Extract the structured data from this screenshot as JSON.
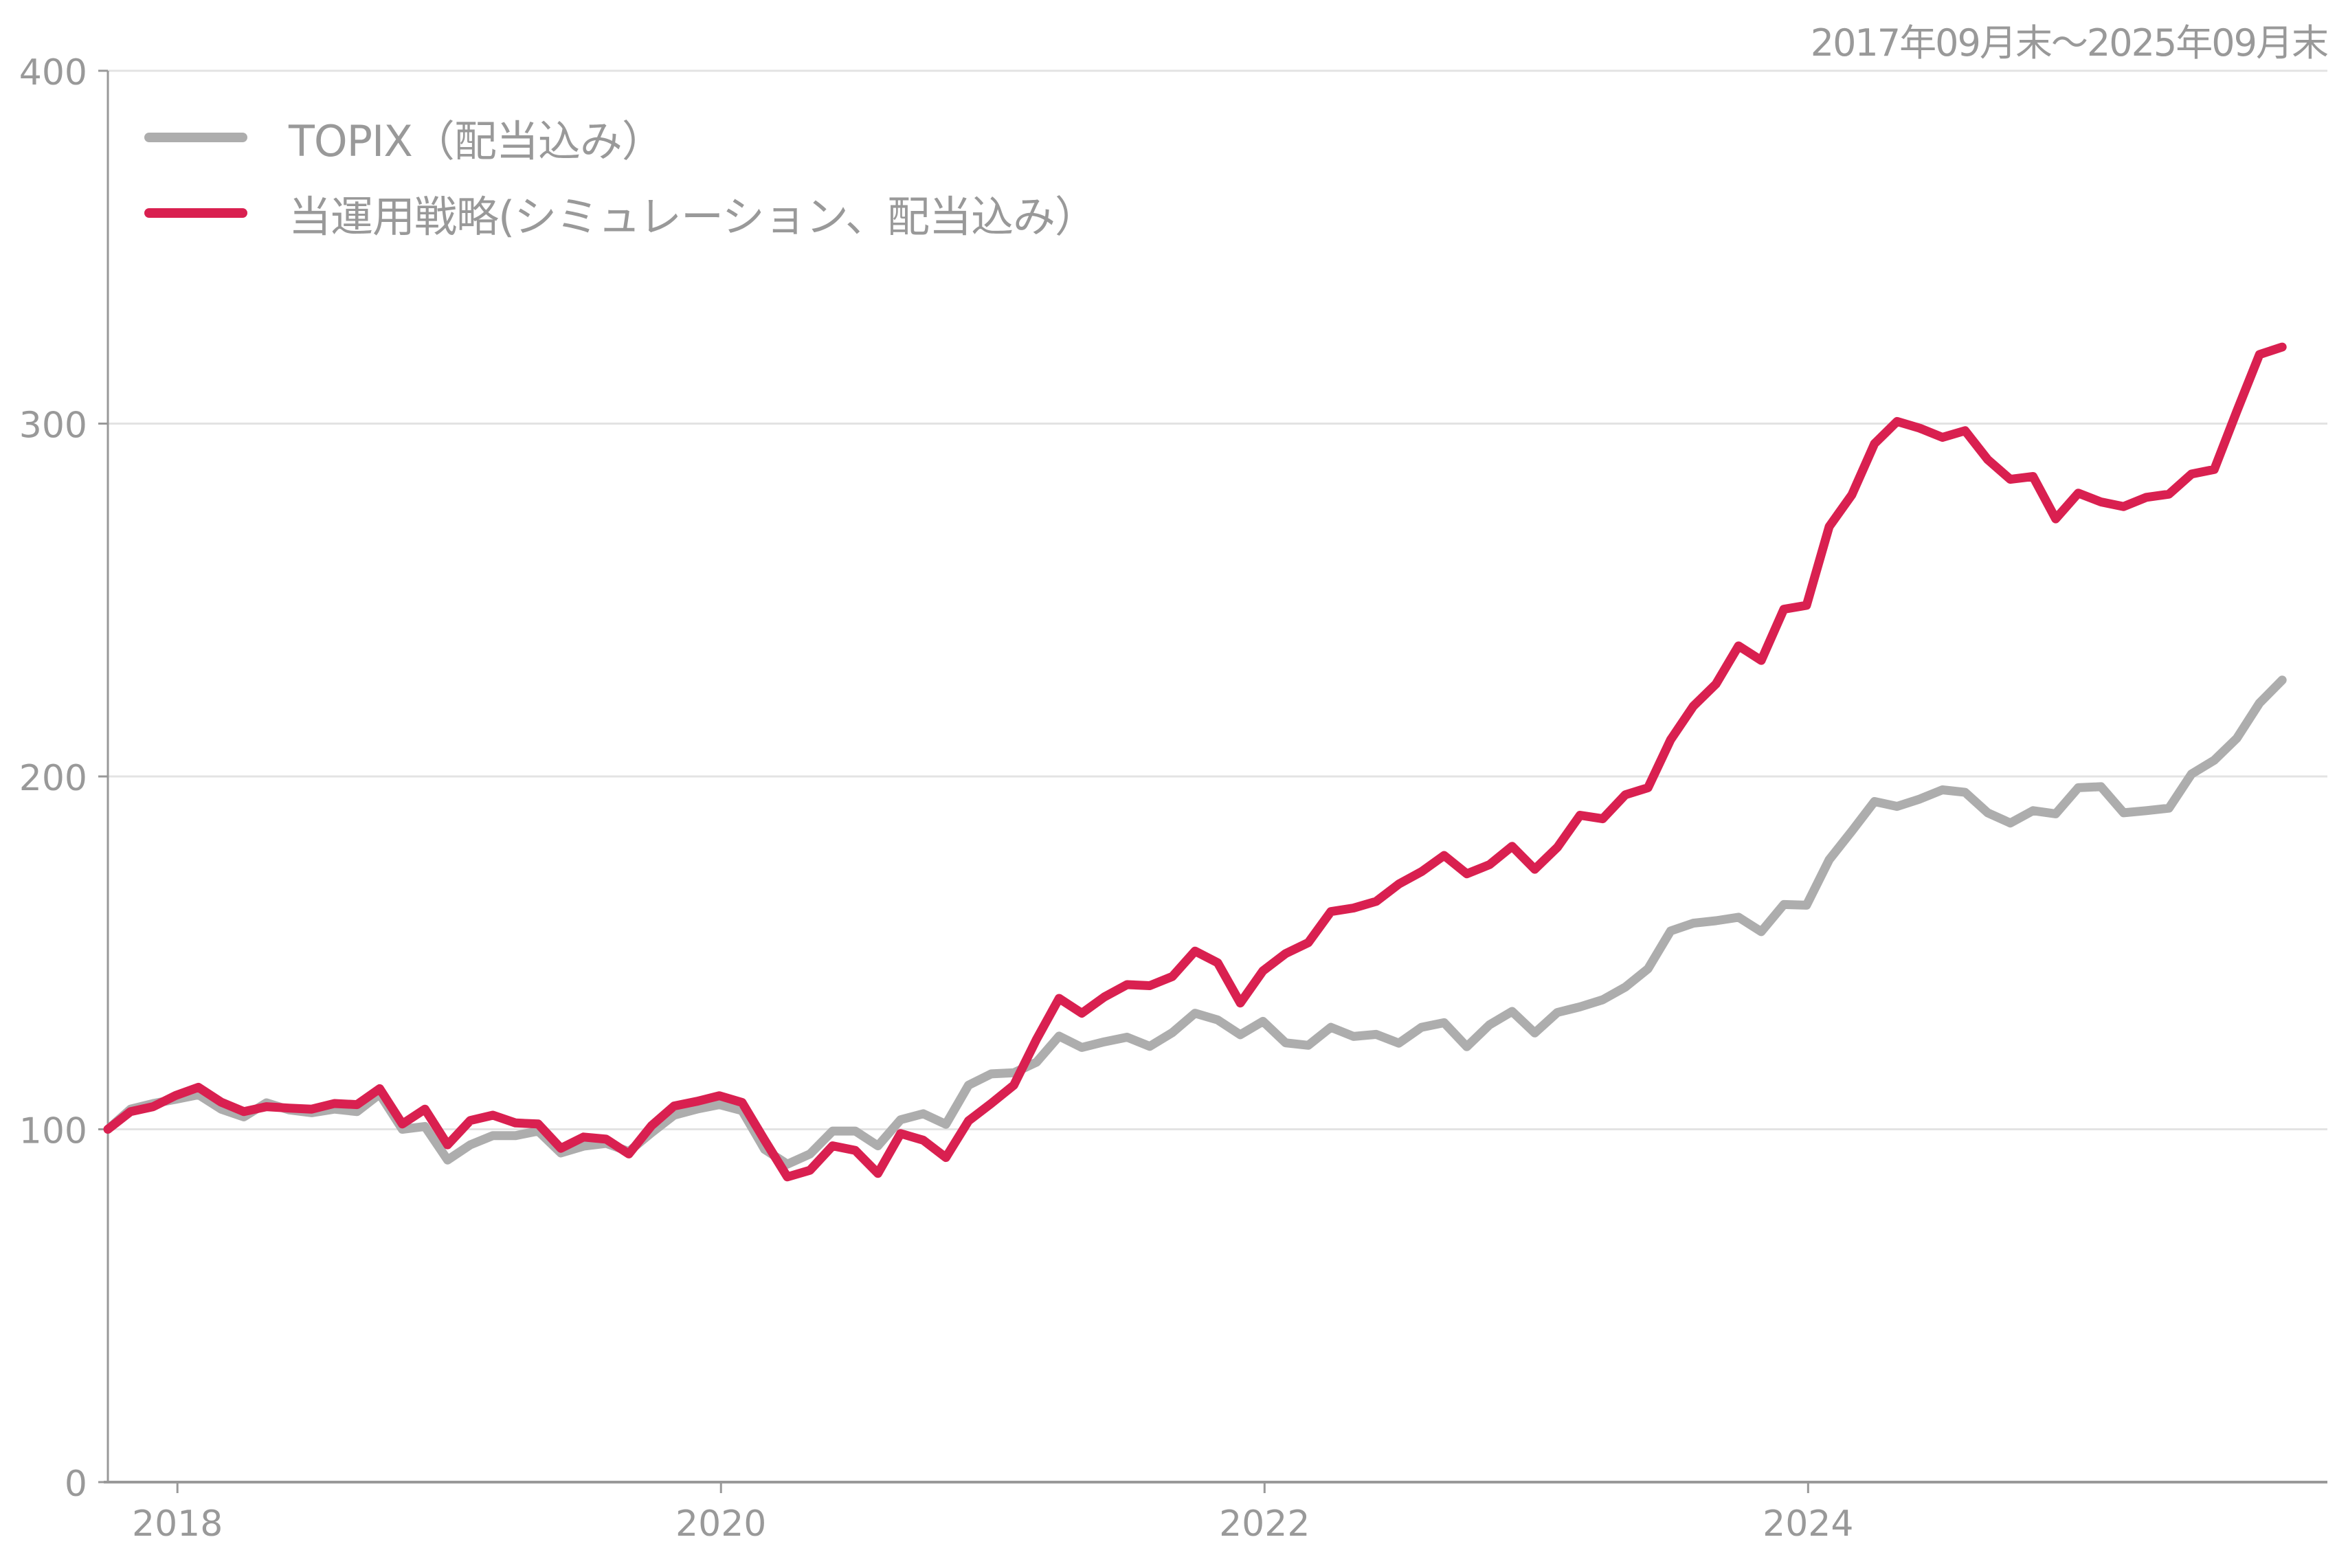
{
  "header": {
    "period_label": "2017年09月末～2025年09月末"
  },
  "legend": {
    "items": [
      {
        "label": "TOPIX（配当込み）",
        "color": "#ADADAD"
      },
      {
        "label": "当運用戦略(シミュレーション、配当込み）",
        "color": "#D92050"
      }
    ]
  },
  "colors": {
    "axis": "#999999",
    "grid": "#E3E3E3",
    "text": "#999999",
    "topix": "#ADADAD",
    "strategy": "#D92050"
  },
  "chart_data": {
    "type": "line",
    "title": "",
    "subtitle": "2017年09月末～2025年09月末",
    "xlabel": "",
    "ylabel": "",
    "ylim": [
      0,
      400
    ],
    "yticks": [
      0,
      100,
      200,
      300,
      400
    ],
    "xticks": [
      {
        "label": "2018",
        "index": 3.07
      },
      {
        "label": "2020",
        "index": 27.07
      },
      {
        "label": "2022",
        "index": 51.07
      },
      {
        "label": "2024",
        "index": 75.07
      }
    ],
    "x_start": "2017-09",
    "x_end": "2025-09",
    "x_frequency": "monthly",
    "grid": true,
    "legend_position": "top-left",
    "series": [
      {
        "name": "TOPIX（配当込み）",
        "color": "#ADADAD",
        "values": [
          100,
          105.7,
          107.3,
          108.5,
          109.8,
          105.7,
          103.5,
          107.5,
          105.5,
          104.7,
          105.7,
          105,
          110,
          100,
          100.8,
          91.3,
          95.6,
          98.2,
          98.2,
          99.5,
          93.3,
          95.2,
          96,
          93.7,
          99,
          104,
          105.7,
          107,
          105.3,
          94.3,
          90.1,
          93,
          99.5,
          99.5,
          95.3,
          102.7,
          104.4,
          101.4,
          112.5,
          115.7,
          116,
          119,
          126.4,
          123.2,
          124.8,
          126.1,
          123.5,
          127.4,
          132.9,
          131,
          126.8,
          130.6,
          124.5,
          123.8,
          128.9,
          126.3,
          126.9,
          124.4,
          128.9,
          130.2,
          123.4,
          129.6,
          133.4,
          127.3,
          133.1,
          134.7,
          136.7,
          140.3,
          145.5,
          156.2,
          158.4,
          159.1,
          160.1,
          156,
          163.7,
          163.5,
          176.4,
          184.5,
          192.9,
          191.5,
          193.6,
          196.2,
          195.5,
          189.7,
          186.8,
          190.3,
          189.4,
          196.8,
          197.1,
          189.7,
          190.3,
          191,
          200.7,
          204.6,
          210.8,
          220.8,
          227.3
        ]
      },
      {
        "name": "当運用戦略(シミュレーション、配当込み）",
        "color": "#D92050",
        "values": [
          100,
          105,
          106.4,
          109.6,
          111.9,
          107.7,
          105,
          106.4,
          106,
          105.7,
          107.3,
          107,
          111.5,
          101.5,
          105.7,
          95.6,
          102.5,
          104,
          101.8,
          101.5,
          94.6,
          97.8,
          97.2,
          93,
          101,
          106.6,
          107.9,
          109.5,
          107.6,
          96.9,
          86.5,
          88.4,
          95.3,
          94,
          87.5,
          98.8,
          96.9,
          92,
          102.4,
          107.3,
          112.5,
          125.5,
          137.1,
          132.9,
          137.5,
          141,
          140.7,
          143.3,
          150.5,
          147.2,
          135.8,
          144.9,
          149.8,
          152.9,
          161.7,
          162.7,
          164.6,
          169.5,
          173,
          177.6,
          172.4,
          175,
          180.2,
          173.7,
          179.9,
          189,
          188,
          194.8,
          196.8,
          210.4,
          219.9,
          226.2,
          237,
          232.9,
          247.4,
          248.5,
          270.8,
          279.8,
          294.3,
          300.6,
          298.7,
          296.1,
          298,
          289.8,
          284.2,
          285,
          273,
          280.3,
          277.8,
          276.5,
          279.1,
          280,
          285.7,
          287,
          303.5,
          319.6,
          321.7
        ]
      }
    ]
  }
}
